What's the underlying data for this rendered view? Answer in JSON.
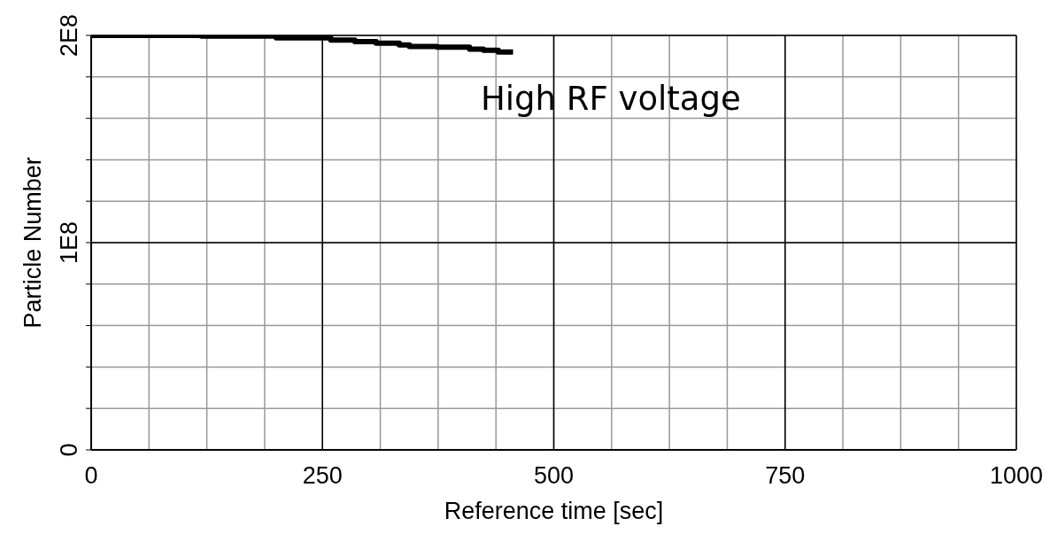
{
  "chart_data": {
    "type": "step",
    "xlabel": "Reference time [sec]",
    "ylabel": "Particle Number",
    "annotations": [
      "High RF voltage"
    ],
    "series": [
      {
        "color": "#000000",
        "x": [
          0,
          119,
          200,
          259,
          285,
          308,
          333,
          344,
          374,
          409,
          424,
          440,
          456
        ],
        "values": [
          200000000,
          199700000,
          198800000,
          197800000,
          197000000,
          196300000,
          195400000,
          194700000,
          194300000,
          193400000,
          192800000,
          192000000,
          192000000
        ]
      }
    ],
    "xlim": [
      0,
      1000
    ],
    "xticks": [
      0,
      {
        "value": 62.5,
        "label": null
      },
      {
        "value": 125,
        "label": null
      },
      {
        "value": 187.5,
        "label": null
      },
      250,
      {
        "value": 312.5,
        "label": null
      },
      {
        "value": 375,
        "label": null
      },
      {
        "value": 437.5,
        "label": null
      },
      500,
      {
        "value": 562.5,
        "label": null
      },
      {
        "value": 625,
        "label": null
      },
      {
        "value": 687.5,
        "label": null
      },
      750,
      {
        "value": 812.5,
        "label": null
      },
      {
        "value": 875,
        "label": null
      },
      {
        "value": 937.5,
        "label": null
      },
      1000
    ],
    "ylim": [
      0,
      200000000
    ],
    "yticks": [
      {
        "value": 0,
        "label": "0"
      },
      {
        "value": 20000000,
        "label": null
      },
      {
        "value": 40000000,
        "label": null
      },
      {
        "value": 60000000,
        "label": null
      },
      {
        "value": 80000000,
        "label": null
      },
      {
        "value": 100000000,
        "label": "1E8"
      },
      {
        "value": 120000000,
        "label": null
      },
      {
        "value": 140000000,
        "label": null
      },
      {
        "value": 160000000,
        "label": null
      },
      {
        "value": 180000000,
        "label": null
      },
      {
        "value": 200000000,
        "label": "2E8"
      }
    ],
    "grid": true
  }
}
